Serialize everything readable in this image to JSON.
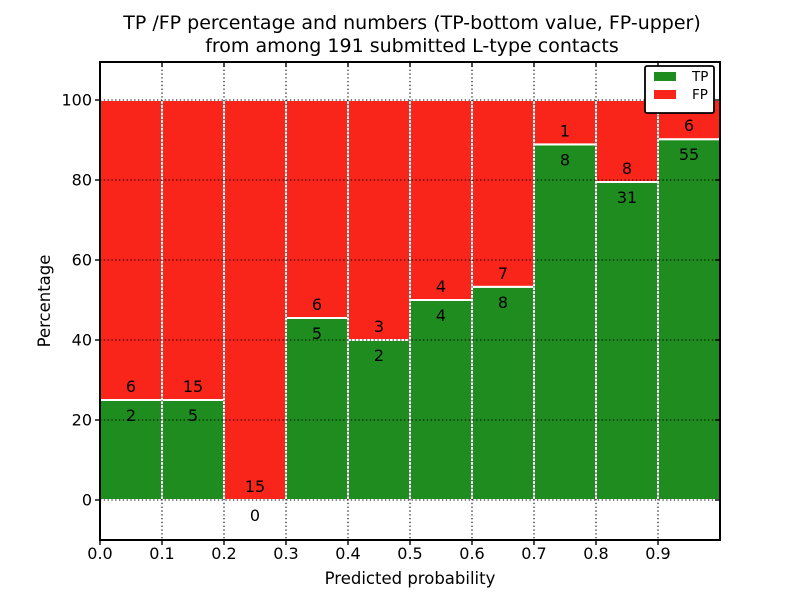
{
  "figure": {
    "background": "#ffffff"
  },
  "chart_data": {
    "type": "bar",
    "stacked": true,
    "normalized": "each bin scaled to 100%",
    "title_line1": "TP /FP percentage and numbers (TP-bottom value, FP-upper)",
    "title_line2": "from among 191 submitted L-type contacts",
    "xlabel": "Predicted probability",
    "ylabel": "Percentage",
    "total_contacts": 191,
    "bin_edges": [
      0.0,
      0.1,
      0.2,
      0.3,
      0.4,
      0.5,
      0.6,
      0.7,
      0.8,
      0.9,
      1.0
    ],
    "categories": [
      "0.0-0.1",
      "0.1-0.2",
      "0.2-0.3",
      "0.3-0.4",
      "0.4-0.5",
      "0.5-0.6",
      "0.6-0.7",
      "0.7-0.8",
      "0.8-0.9",
      "0.9-1.0"
    ],
    "series": [
      {
        "name": "TP",
        "color": "#1f8c1f",
        "counts": [
          2,
          5,
          0,
          5,
          2,
          4,
          8,
          8,
          31,
          55
        ],
        "percent": [
          25.0,
          25.0,
          0.0,
          45.5,
          40.0,
          50.0,
          53.3,
          88.9,
          79.5,
          90.2
        ]
      },
      {
        "name": "FP",
        "color": "#f9251a",
        "counts": [
          6,
          15,
          15,
          6,
          3,
          4,
          7,
          1,
          8,
          6
        ],
        "percent": [
          75.0,
          75.0,
          100.0,
          54.5,
          60.0,
          50.0,
          46.7,
          11.1,
          20.5,
          9.8
        ]
      }
    ],
    "bar_edge_color": "#ffffff",
    "xtick_labels": [
      "0.0",
      "0.1",
      "0.2",
      "0.3",
      "0.4",
      "0.5",
      "0.6",
      "0.7",
      "0.8",
      "0.9"
    ],
    "ytick_values": [
      0,
      20,
      40,
      60,
      80,
      100
    ],
    "xlim": [
      0.0,
      1.0
    ],
    "ylim": [
      -10,
      110
    ],
    "grid": "dotted",
    "legend": {
      "position": "upper right",
      "entries": [
        {
          "label": "TP",
          "color": "#1f8c1f"
        },
        {
          "label": "FP",
          "color": "#f9251a"
        }
      ]
    }
  }
}
